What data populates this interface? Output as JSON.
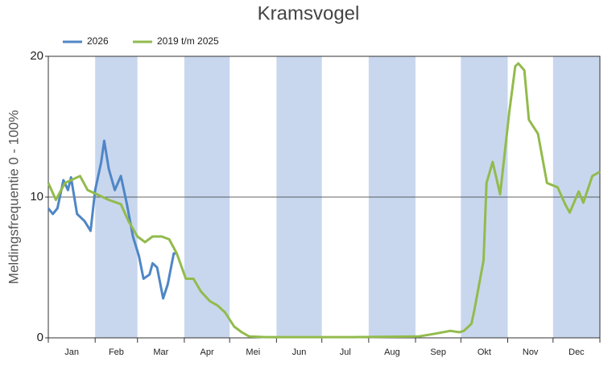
{
  "chart_data": {
    "type": "line",
    "title": "Kramsvogel",
    "ylabel": "Meldingsfrequentie 0 - 100%",
    "categories": [
      "Jan",
      "Feb",
      "Mar",
      "Apr",
      "Mei",
      "Jun",
      "Jul",
      "Aug",
      "Sep",
      "Okt",
      "Nov",
      "Dec"
    ],
    "xlim": [
      0,
      365
    ],
    "xticks": [
      0,
      31,
      59,
      90,
      120,
      151,
      181,
      212,
      243,
      273,
      304,
      334,
      365
    ],
    "ylim": [
      0,
      20
    ],
    "yticks": [
      0,
      10,
      20
    ],
    "band_color": "#c8d7ee",
    "grid_value": 10,
    "series": [
      {
        "name": "2026",
        "color": "#4f86c6",
        "x": [
          0,
          3,
          6,
          10,
          13,
          15,
          19,
          24,
          28,
          31,
          35,
          37,
          40,
          44,
          48,
          52,
          56,
          60,
          63,
          67,
          69,
          72,
          76,
          79,
          83,
          85
        ],
        "values": [
          9.2,
          8.8,
          9.2,
          11.2,
          10.5,
          11.4,
          8.8,
          8.3,
          7.6,
          10.5,
          12.5,
          14.0,
          12.0,
          10.5,
          11.5,
          9.5,
          7.2,
          5.8,
          4.2,
          4.5,
          5.3,
          5.0,
          2.8,
          3.8,
          6.0,
          6.0
        ]
      },
      {
        "name": "2019 t/m 2025",
        "color": "#92bb4c",
        "x": [
          0,
          5,
          11,
          21,
          26,
          32,
          40,
          48,
          53,
          59,
          64,
          69,
          75,
          80,
          85,
          91,
          96,
          101,
          107,
          112,
          117,
          123,
          128,
          133,
          144,
          200,
          245,
          256,
          266,
          272,
          275,
          280,
          282,
          288,
          290,
          294,
          299,
          305,
          309,
          311,
          315,
          318,
          324,
          330,
          337,
          342,
          345,
          351,
          354,
          360,
          365
        ],
        "values": [
          11.0,
          9.8,
          11.0,
          11.5,
          10.5,
          10.2,
          9.8,
          9.5,
          8.3,
          7.2,
          6.8,
          7.2,
          7.2,
          7.0,
          6.0,
          4.2,
          4.2,
          3.3,
          2.6,
          2.3,
          1.8,
          0.8,
          0.4,
          0.1,
          0.05,
          0.05,
          0.1,
          0.3,
          0.5,
          0.4,
          0.5,
          1.0,
          2.0,
          5.5,
          11.0,
          12.5,
          10.2,
          16.0,
          19.3,
          19.5,
          19.0,
          15.5,
          14.5,
          11.0,
          10.7,
          9.5,
          8.9,
          10.4,
          9.6,
          11.5,
          11.8
        ]
      }
    ]
  }
}
